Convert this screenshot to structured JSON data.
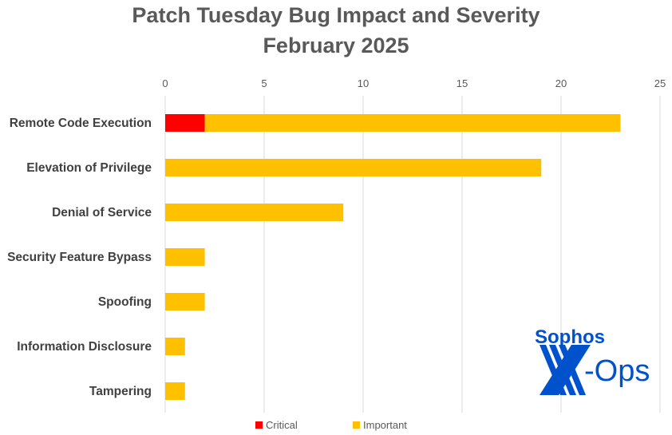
{
  "chart_data": {
    "type": "bar",
    "orientation": "horizontal",
    "stacked": true,
    "title": "Patch Tuesday Bug Impact and Severity",
    "subtitle": "February 2025",
    "categories": [
      "Remote Code Execution",
      "Elevation of Privilege",
      "Denial of Service",
      "Security Feature Bypass",
      "Spoofing",
      "Information Disclosure",
      "Tampering"
    ],
    "series": [
      {
        "name": "Critical",
        "color": "#FF0000",
        "values": [
          2,
          0,
          0,
          0,
          0,
          0,
          0
        ]
      },
      {
        "name": "Important",
        "color": "#FFC000",
        "values": [
          21,
          19,
          9,
          2,
          2,
          1,
          1
        ]
      }
    ],
    "xlim": [
      0,
      25
    ],
    "xticks": [
      0,
      5,
      10,
      15,
      20,
      25
    ],
    "xaxis_position": "top",
    "grid": true,
    "legend": "bottom"
  },
  "logo": {
    "text_top": "Sophos",
    "text_bottom": "X-Ops",
    "color": "#0052CC"
  }
}
